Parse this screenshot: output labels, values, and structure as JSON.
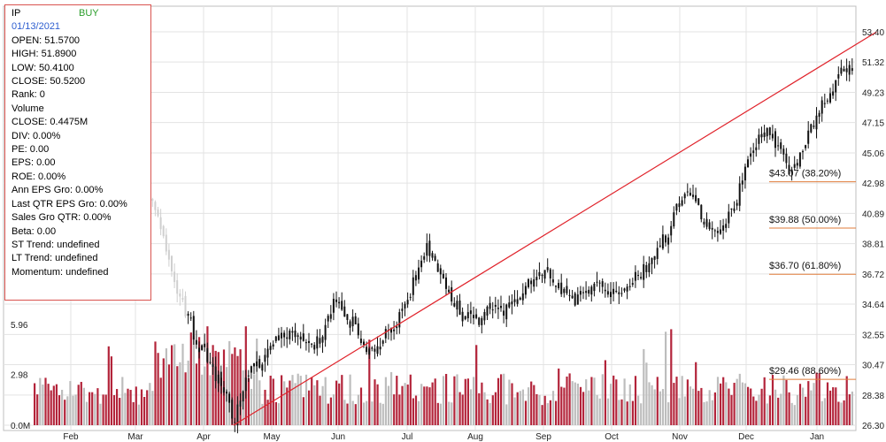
{
  "info": {
    "symbol": "IP",
    "signal": "BUY",
    "date": "01/13/2021",
    "lines": [
      "OPEN: 51.5700",
      "HIGH: 51.8900",
      "LOW: 50.4100",
      "CLOSE: 50.5200",
      "Rank: 0",
      "Volume",
      "CLOSE: 0.4475M",
      "DIV: 0.00%",
      "PE: 0.00",
      "EPS: 0.00",
      "ROE: 0.00%",
      "Ann EPS Gro: 0.00%",
      "Last QTR EPS Gro: 0.00%",
      "Sales Gro QTR: 0.00%",
      "Beta: 0.00",
      "ST Trend: undefined",
      "LT Trend: undefined",
      "Momentum: undefined"
    ]
  },
  "chart_data": {
    "type": "candlestick",
    "x_labels": [
      "Feb",
      "Mar",
      "Apr",
      "May",
      "Jun",
      "Jul",
      "Aug",
      "Sep",
      "Oct",
      "Nov",
      "Dec",
      "Jan"
    ],
    "price_ticks": [
      "53.40",
      "51.32",
      "49.23",
      "47.15",
      "45.06",
      "42.98",
      "40.89",
      "38.81",
      "36.72",
      "34.64",
      "32.55",
      "30.47",
      "28.38",
      "26.30"
    ],
    "price_range": [
      26.3,
      53.4
    ],
    "volume_ticks": [
      "5.96",
      "2.98",
      "0.0M"
    ],
    "volume_range": [
      0,
      5.96
    ],
    "fibonacci": [
      {
        "label": "$43.07 (38.20%)",
        "value": 43.07
      },
      {
        "label": "$39.88 (50.00%)",
        "value": 39.88
      },
      {
        "label": "$36.70 (61.80%)",
        "value": 36.7
      },
      {
        "label": "$29.46 (88.60%)",
        "value": 29.46
      }
    ],
    "trend_line": {
      "from": {
        "month": 2.4,
        "price": 26.3
      },
      "to": {
        "month": 11.88,
        "price": 53.4
      }
    },
    "price_path": [
      {
        "m": -0.1,
        "p": 46.0
      },
      {
        "m": 0.3,
        "p": 45.3
      },
      {
        "m": 0.6,
        "p": 44.8
      },
      {
        "m": 0.9,
        "p": 44.2
      },
      {
        "m": 1.2,
        "p": 41.5
      },
      {
        "m": 1.4,
        "p": 38.2
      },
      {
        "m": 1.55,
        "p": 35.8
      },
      {
        "m": 1.7,
        "p": 34.0
      },
      {
        "m": 1.85,
        "p": 32.0
      },
      {
        "m": 2.0,
        "p": 31.0
      },
      {
        "m": 2.15,
        "p": 29.5
      },
      {
        "m": 2.3,
        "p": 27.8
      },
      {
        "m": 2.4,
        "p": 26.8
      },
      {
        "m": 2.55,
        "p": 29.0
      },
      {
        "m": 2.7,
        "p": 30.5
      },
      {
        "m": 2.85,
        "p": 31.0
      },
      {
        "m": 3.0,
        "p": 32.2
      },
      {
        "m": 3.25,
        "p": 32.6
      },
      {
        "m": 3.5,
        "p": 31.5
      },
      {
        "m": 3.75,
        "p": 32.8
      },
      {
        "m": 3.85,
        "p": 34.8
      },
      {
        "m": 4.0,
        "p": 34.0
      },
      {
        "m": 4.2,
        "p": 33.0
      },
      {
        "m": 4.4,
        "p": 31.2
      },
      {
        "m": 4.6,
        "p": 32.3
      },
      {
        "m": 4.8,
        "p": 33.6
      },
      {
        "m": 4.95,
        "p": 35.2
      },
      {
        "m": 5.1,
        "p": 36.6
      },
      {
        "m": 5.25,
        "p": 38.6
      },
      {
        "m": 5.4,
        "p": 37.2
      },
      {
        "m": 5.6,
        "p": 35.2
      },
      {
        "m": 5.8,
        "p": 33.6
      },
      {
        "m": 6.0,
        "p": 33.6
      },
      {
        "m": 6.2,
        "p": 34.6
      },
      {
        "m": 6.4,
        "p": 34.2
      },
      {
        "m": 6.6,
        "p": 35.4
      },
      {
        "m": 6.8,
        "p": 36.3
      },
      {
        "m": 7.0,
        "p": 36.6
      },
      {
        "m": 7.2,
        "p": 35.6
      },
      {
        "m": 7.4,
        "p": 34.9
      },
      {
        "m": 7.6,
        "p": 35.6
      },
      {
        "m": 7.8,
        "p": 36.2
      },
      {
        "m": 8.0,
        "p": 35.2
      },
      {
        "m": 8.2,
        "p": 35.9
      },
      {
        "m": 8.4,
        "p": 36.9
      },
      {
        "m": 8.6,
        "p": 38.1
      },
      {
        "m": 8.8,
        "p": 39.6
      },
      {
        "m": 8.95,
        "p": 41.6
      },
      {
        "m": 9.1,
        "p": 42.9
      },
      {
        "m": 9.25,
        "p": 41.1
      },
      {
        "m": 9.4,
        "p": 39.8
      },
      {
        "m": 9.55,
        "p": 39.3
      },
      {
        "m": 9.7,
        "p": 40.8
      },
      {
        "m": 9.85,
        "p": 42.6
      },
      {
        "m": 10.0,
        "p": 44.6
      },
      {
        "m": 10.15,
        "p": 46.2
      },
      {
        "m": 10.3,
        "p": 46.3
      },
      {
        "m": 10.45,
        "p": 45.1
      },
      {
        "m": 10.6,
        "p": 43.6
      },
      {
        "m": 10.75,
        "p": 45.1
      },
      {
        "m": 10.9,
        "p": 46.9
      },
      {
        "m": 11.05,
        "p": 48.3
      },
      {
        "m": 11.2,
        "p": 49.3
      },
      {
        "m": 11.35,
        "p": 51.1
      },
      {
        "m": 11.5,
        "p": 50.6
      },
      {
        "m": 11.62,
        "p": 49.1
      },
      {
        "m": 11.72,
        "p": 48.3
      },
      {
        "m": 11.85,
        "p": 48.6
      },
      {
        "m": 12.0,
        "p": 48.2
      },
      {
        "m": 12.15,
        "p": 48.4
      },
      {
        "m": 12.3,
        "p": 48.9
      },
      {
        "m": 12.45,
        "p": 48.7
      },
      {
        "m": 12.6,
        "p": 49.0
      },
      {
        "m": 12.75,
        "p": 48.8
      },
      {
        "m": 12.86,
        "p": 48.4
      },
      {
        "m": 12.95,
        "p": 51.6
      },
      {
        "m": 13.05,
        "p": 52.6
      },
      {
        "m": 13.2,
        "p": 51.5
      },
      {
        "m": 13.32,
        "p": 50.6
      }
    ]
  }
}
